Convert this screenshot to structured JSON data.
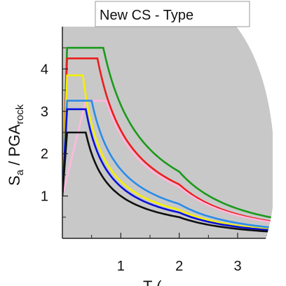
{
  "chart_data": {
    "type": "line",
    "title": "New CS - Type",
    "xlabel": "T (",
    "ylabel_main": "S",
    "ylabel_sub1": "a",
    "ylabel_mid": " / PGA",
    "ylabel_sub2": "rock",
    "xlim": [
      0,
      3.6
    ],
    "ylim": [
      0,
      5
    ],
    "x_ticks": [
      "1",
      "2",
      "3"
    ],
    "y_ticks": [
      "1",
      "2",
      "3",
      "4"
    ],
    "x_tick_values": [
      1,
      2,
      3
    ],
    "y_tick_values": [
      1,
      2,
      3,
      4
    ],
    "grid": false,
    "background_color": "#c8c8c8",
    "series": [
      {
        "color": "#1a9a1a",
        "plateau": 4.5,
        "tb": 0.08,
        "tc": 0.7,
        "td": 2.0
      },
      {
        "color": "#ee1c1c",
        "plateau": 4.25,
        "tb": 0.08,
        "tc": 0.6,
        "td": 2.0
      },
      {
        "color": "#ff9078",
        "plateau": 3.25,
        "tb": 0.08,
        "tc": 0.75,
        "td": 2.0
      },
      {
        "color": "#ffb8e0",
        "plateau": 3.25,
        "tb": 0.4,
        "tc": 0.75,
        "td": 2.0
      },
      {
        "color": "#f4f000",
        "plateau": 3.85,
        "tb": 0.08,
        "tc": 0.35,
        "td": 2.0
      },
      {
        "color": "#2a8ce8",
        "plateau": 3.25,
        "tb": 0.08,
        "tc": 0.5,
        "td": 2.0
      },
      {
        "color": "#0a10d8",
        "plateau": 3.05,
        "tb": 0.08,
        "tc": 0.4,
        "td": 2.0
      },
      {
        "color": "#101010",
        "plateau": 2.5,
        "tb": 0.08,
        "tc": 0.4,
        "td": 2.0
      }
    ]
  }
}
